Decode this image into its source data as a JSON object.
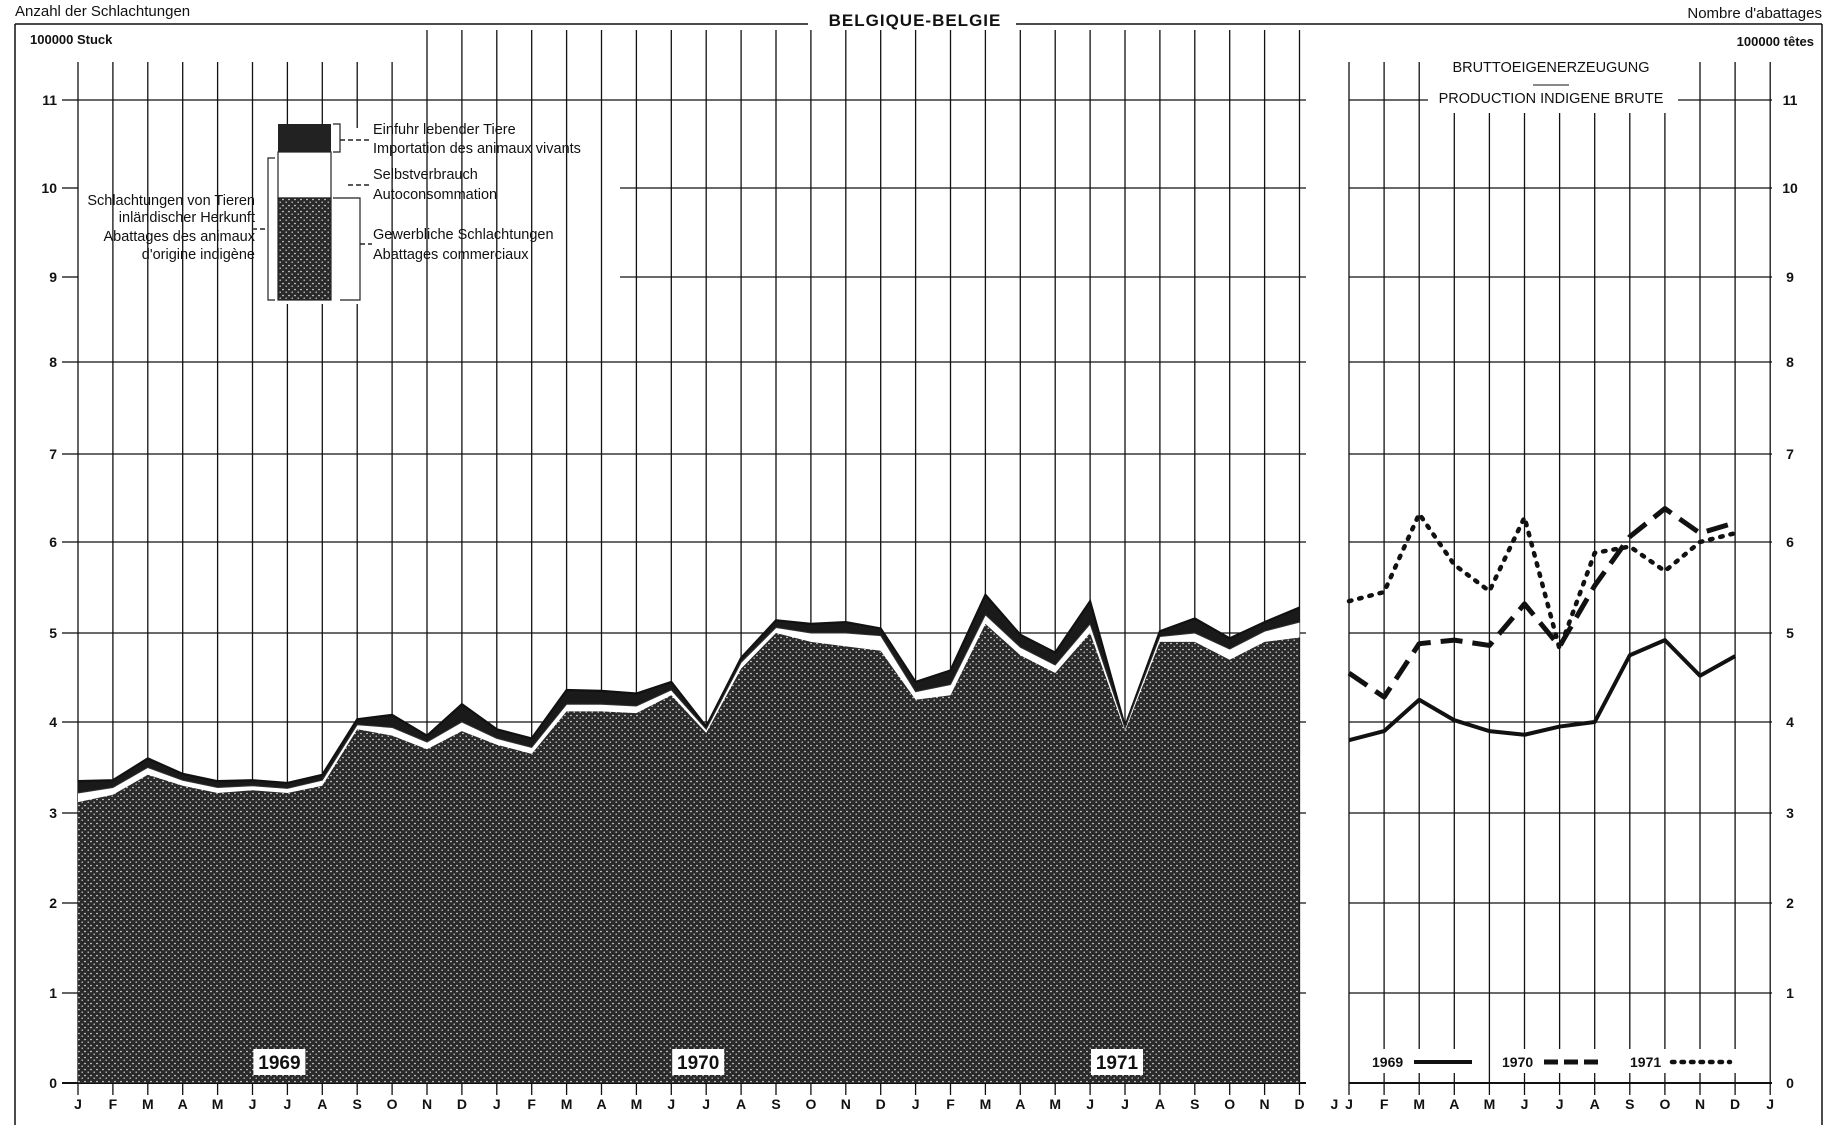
{
  "header": {
    "left": "Anzahl der Schlachtungen",
    "title": "BELGIQUE-BELGIE",
    "right": "Nombre d'abattages",
    "unit_left": "100000  Stuck",
    "unit_right": "100000 têtes"
  },
  "legend": {
    "import_de": "Einfuhr lebender Tiere",
    "import_fr": "Importation des animaux vivants",
    "self_de": "Selbstverbrauch",
    "self_fr": "Autoconsommation",
    "commercial_de": "Gewerbliche Schlachtungen",
    "commercial_fr": "Abattages commerciaux",
    "domestic_1": "Schlachtungen von Tieren",
    "domestic_2": "inländischer Herkunft",
    "domestic_3": "Abattages des animaux",
    "domestic_4": "d'origine indigène"
  },
  "right_panel": {
    "title_de": "BRUTTOEIGENERZEUGUNG",
    "title_fr": "PRODUCTION INDIGENE BRUTE"
  },
  "chart_data": [
    {
      "type": "area",
      "x": [
        "J",
        "F",
        "M",
        "A",
        "M",
        "J",
        "J",
        "A",
        "S",
        "O",
        "N",
        "D",
        "J",
        "F",
        "M",
        "A",
        "M",
        "J",
        "J",
        "A",
        "S",
        "O",
        "N",
        "D",
        "J",
        "F",
        "M",
        "A",
        "M",
        "J",
        "J",
        "A",
        "S",
        "O",
        "N",
        "D"
      ],
      "year_labels": [
        "1969",
        "1970",
        "1971"
      ],
      "ylim": [
        0,
        11
      ],
      "yticks": [
        0,
        1,
        2,
        3,
        4,
        5,
        6,
        7,
        8,
        9,
        10,
        11
      ],
      "series": [
        {
          "name": "Gewerbliche Schlachtungen / Abattages commerciaux",
          "values": [
            3.12,
            3.2,
            3.42,
            3.3,
            3.22,
            3.25,
            3.22,
            3.3,
            3.92,
            3.85,
            3.7,
            3.9,
            3.75,
            3.65,
            4.12,
            4.12,
            4.1,
            4.3,
            3.88,
            4.6,
            5.0,
            4.9,
            4.85,
            4.8,
            4.25,
            4.3,
            5.1,
            4.75,
            4.55,
            5.0,
            3.9,
            4.9,
            4.9,
            4.7,
            4.9,
            4.95
          ]
        },
        {
          "name": "Selbstverbrauch / Autoconsommation",
          "values": [
            3.22,
            3.28,
            3.5,
            3.36,
            3.28,
            3.3,
            3.27,
            3.36,
            3.97,
            3.94,
            3.78,
            4.0,
            3.82,
            3.72,
            4.2,
            4.2,
            4.18,
            4.36,
            3.92,
            4.67,
            5.06,
            5.0,
            5.0,
            4.97,
            4.34,
            4.42,
            5.2,
            4.84,
            4.64,
            5.1,
            3.94,
            4.96,
            5.0,
            4.82,
            5.02,
            5.12
          ]
        },
        {
          "name": "Einfuhr lebender Tiere / Importation des animaux vivants",
          "values": [
            3.35,
            3.36,
            3.6,
            3.43,
            3.35,
            3.36,
            3.33,
            3.42,
            4.03,
            4.08,
            3.85,
            4.2,
            3.92,
            3.82,
            4.36,
            4.35,
            4.32,
            4.45,
            3.95,
            4.72,
            5.14,
            5.1,
            5.12,
            5.05,
            4.45,
            4.58,
            5.42,
            4.98,
            4.78,
            5.35,
            3.95,
            5.02,
            5.16,
            4.94,
            5.12,
            5.28
          ]
        }
      ]
    },
    {
      "type": "line",
      "title": "BRUTTOEIGENERZEUGUNG — PRODUCTION INDIGENE BRUTE",
      "x": [
        "J",
        "F",
        "M",
        "A",
        "M",
        "J",
        "J",
        "A",
        "S",
        "O",
        "N",
        "D"
      ],
      "ylim": [
        0,
        11
      ],
      "series": [
        {
          "name": "1969",
          "style": "solid",
          "values": [
            3.8,
            3.9,
            4.25,
            4.02,
            3.9,
            3.86,
            3.95,
            4.0,
            4.75,
            4.92,
            4.52,
            4.74
          ]
        },
        {
          "name": "1970",
          "style": "dashed",
          "values": [
            4.55,
            4.28,
            4.88,
            4.92,
            4.86,
            5.32,
            4.85,
            5.52,
            6.06,
            6.38,
            6.1,
            6.22
          ]
        },
        {
          "name": "1971",
          "style": "dotted",
          "values": [
            5.35,
            5.45,
            6.32,
            5.75,
            5.46,
            6.28,
            4.82,
            5.88,
            5.95,
            5.68,
            6.0,
            6.1
          ]
        }
      ]
    }
  ]
}
